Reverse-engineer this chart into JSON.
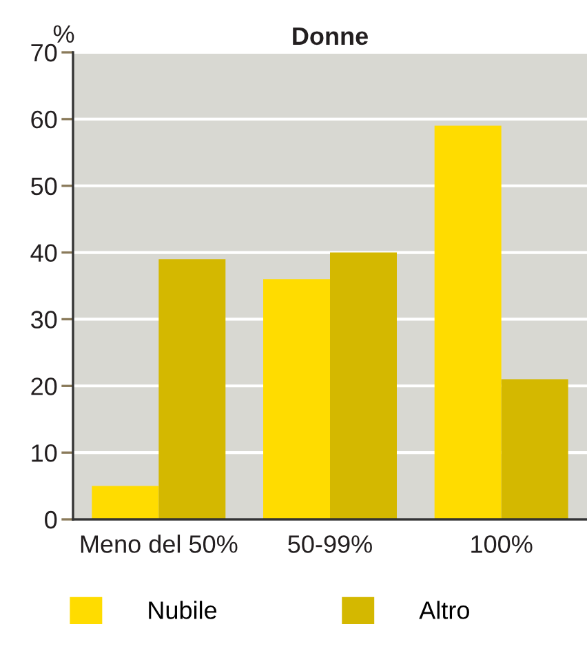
{
  "chart_data": {
    "type": "bar",
    "title": "Donne",
    "ylabel": "%",
    "categories": [
      "Meno del 50%",
      "50-99%",
      "100%"
    ],
    "series": [
      {
        "name": "Nubile",
        "color": "#ffdc00",
        "values": [
          5,
          36,
          59
        ]
      },
      {
        "name": "Altro",
        "color": "#d4b800",
        "values": [
          39,
          40,
          21
        ]
      }
    ],
    "ylim": [
      0,
      70
    ],
    "yticks": [
      0,
      10,
      20,
      30,
      40,
      50,
      60,
      70
    ],
    "grid": "y",
    "legend": "bottom"
  }
}
